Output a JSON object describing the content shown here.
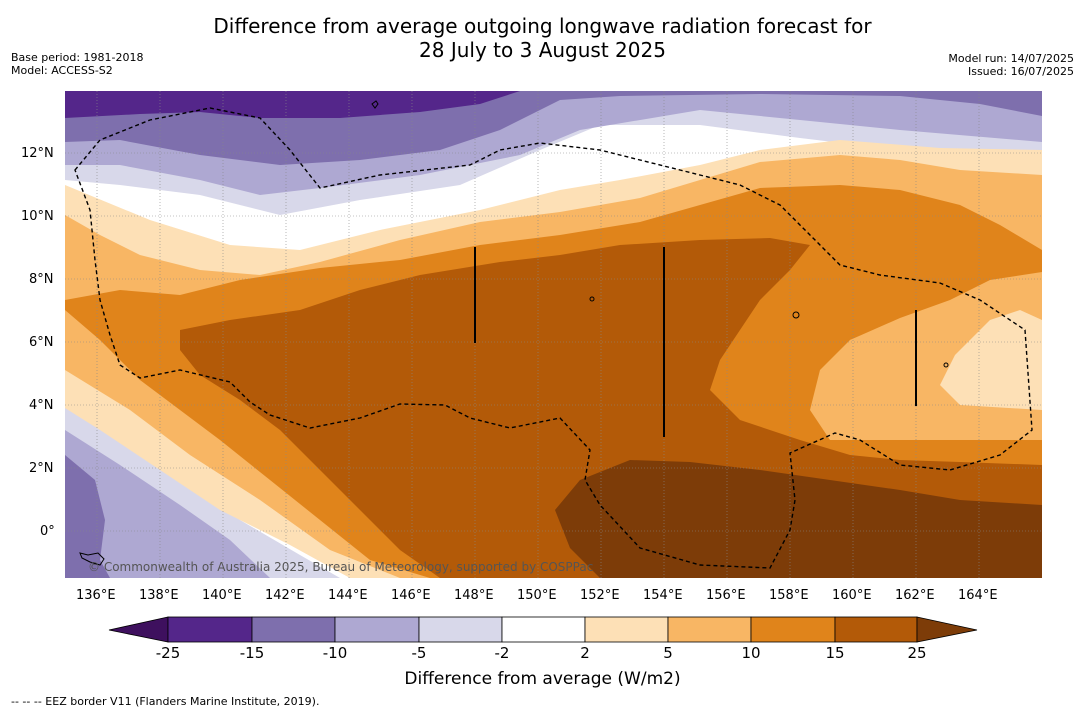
{
  "title_line1": "Difference from average outgoing longwave radiation forecast for",
  "title_line2": "28 July to 3 August 2025",
  "base_period": "Base period: 1981-2018",
  "model": "Model: ACCESS-S2",
  "model_run": "Model run: 14/07/2025",
  "issued": "Issued: 16/07/2025",
  "lon_labels": [
    "136°E",
    "138°E",
    "140°E",
    "142°E",
    "144°E",
    "146°E",
    "148°E",
    "150°E",
    "152°E",
    "154°E",
    "156°E",
    "158°E",
    "160°E",
    "162°E",
    "164°E"
  ],
  "lat_labels": [
    "12°N",
    "10°N",
    "8°N",
    "6°N",
    "4°N",
    "2°N",
    "0°"
  ],
  "copyright": "© Commonwealth of Australia 2025, Bureau of Meteorology, supported by COSPPac",
  "colorbar": {
    "title": "Difference from average (W/m2)",
    "labels": [
      "-25",
      "-15",
      "-10",
      "-5",
      "-2",
      "2",
      "5",
      "10",
      "15",
      "25"
    ],
    "colors": [
      "#3e105e",
      "#54268a",
      "#7e6fad",
      "#aea8d2",
      "#d8d8ea",
      "#ffffff",
      "#fde0b6",
      "#f8b664",
      "#e0841b",
      "#b35a08",
      "#7d3c08"
    ]
  },
  "footnote": "-- -- -- EEZ border V11 (Flanders Marine Institute, 2019)."
}
